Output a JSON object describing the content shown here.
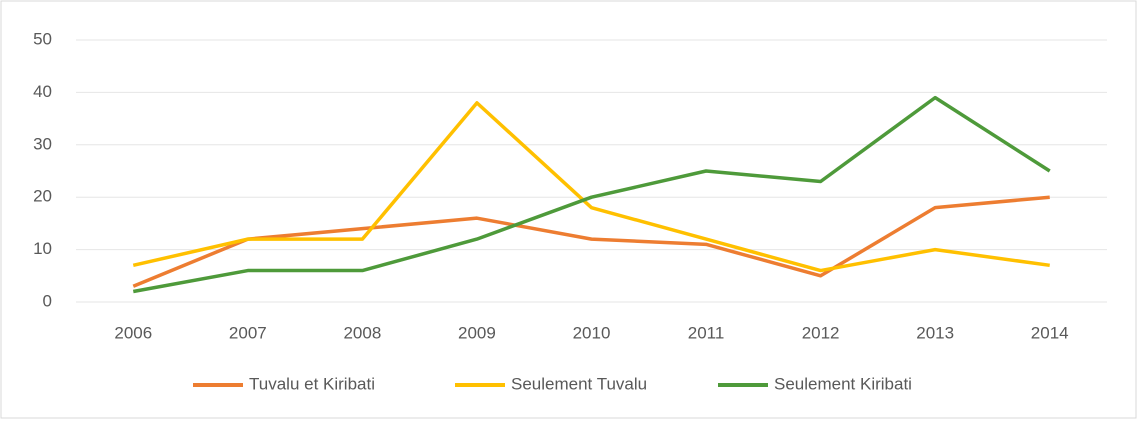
{
  "chart_data": {
    "type": "line",
    "categories": [
      "2006",
      "2007",
      "2008",
      "2009",
      "2010",
      "2011",
      "2012",
      "2013",
      "2014"
    ],
    "series": [
      {
        "name": "Tuvalu et Kiribati",
        "color": "#ed7d31",
        "values": [
          3,
          12,
          14,
          16,
          12,
          11,
          5,
          18,
          20
        ]
      },
      {
        "name": "Seulement Tuvalu",
        "color": "#ffc000",
        "values": [
          7,
          12,
          12,
          38,
          18,
          12,
          6,
          10,
          7
        ]
      },
      {
        "name": "Seulement Kiribati",
        "color": "#4e9a3a",
        "values": [
          2,
          6,
          6,
          12,
          20,
          25,
          23,
          39,
          25
        ]
      }
    ],
    "ylim": [
      0,
      50
    ],
    "yticks": [
      0,
      10,
      20,
      30,
      40,
      50
    ],
    "grid": true,
    "legend": "bottom"
  }
}
